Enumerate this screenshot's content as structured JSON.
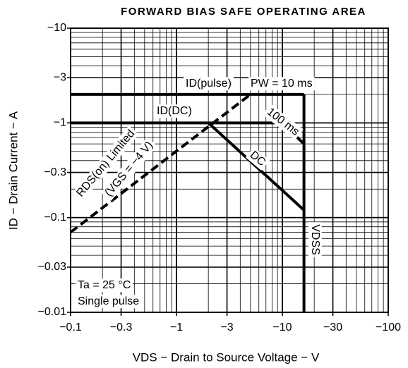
{
  "chart_data": {
    "type": "line",
    "title": "FORWARD BIAS SAFE OPERATING AREA",
    "x_label": "VDS − Drain to Source Voltage − V",
    "y_label": "ID − Drain Current − A",
    "xlog": true,
    "ylog": true,
    "grid": true,
    "xlim": [
      0.1,
      100
    ],
    "ylim": [
      0.01,
      10
    ],
    "xticks": [
      {
        "value": 0.1,
        "label": "−0.1"
      },
      {
        "value": 0.3,
        "label": "−0.3"
      },
      {
        "value": 1,
        "label": "−1"
      },
      {
        "value": 3,
        "label": "−3"
      },
      {
        "value": 10,
        "label": "−10"
      },
      {
        "value": 30,
        "label": "−30"
      },
      {
        "value": 100,
        "label": "−100"
      }
    ],
    "yticks": [
      {
        "value": 0.01,
        "label": "−0.01"
      },
      {
        "value": 0.03,
        "label": "−0.03"
      },
      {
        "value": 0.1,
        "label": "−0.1"
      },
      {
        "value": 0.3,
        "label": "−0.3"
      },
      {
        "value": 1,
        "label": "−1"
      },
      {
        "value": 3,
        "label": "−3"
      },
      {
        "value": 10,
        "label": "−10"
      }
    ],
    "series": [
      {
        "name": "PW = 10 ms",
        "color": "#000000",
        "x": [
          0.1,
          16
        ],
        "values": [
          2,
          2
        ]
      },
      {
        "name": "VDSS",
        "color": "#000000",
        "x": [
          16,
          16
        ],
        "values": [
          2,
          0.01
        ]
      },
      {
        "name": "100 ms",
        "color": "#000000",
        "x": [
          0.1,
          10,
          16
        ],
        "values": [
          1,
          1,
          0.6
        ]
      },
      {
        "name": "DC",
        "color": "#000000",
        "x": [
          2,
          16
        ],
        "values": [
          1,
          0.12
        ]
      },
      {
        "name": "RDS(on) Limited",
        "color": "#000000",
        "dashed": true,
        "x": [
          0.1,
          5
        ],
        "values": [
          0.07,
          2
        ]
      }
    ],
    "annotations": [
      "ID(pulse)",
      "ID(DC)",
      "(VGS = −4 V)",
      "Ta = 25 °C",
      "Single pulse"
    ]
  }
}
